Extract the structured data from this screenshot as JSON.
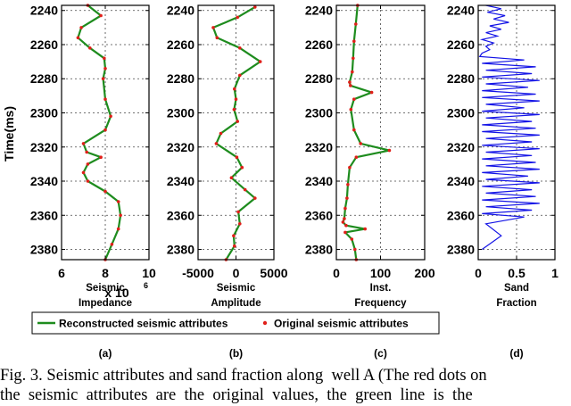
{
  "figure": {
    "y_axis_label": "Time(ms)",
    "legend": {
      "reconstructed_label": "Reconstructed seismic attributes",
      "original_label": "Original seismic attributes"
    },
    "caption_line1": "Fig. 3. Seismic attributes and sand fraction along  well A (The red dots on",
    "caption_line2": "the  seismic  attributes  are  the  original  values,  the  green  line  is  the"
  },
  "colors": {
    "reconstructed": "#1e8c1e",
    "original": "#e0201a",
    "sand": "#1414e6"
  },
  "chart_data": [
    {
      "type": "line",
      "panel": "(a)",
      "xlabel_line1": "Seismic",
      "xlabel_line2": "Impedance",
      "x_multiplier_label": "x 10",
      "x_multiplier_exponent": "6",
      "xlim": [
        6,
        10
      ],
      "xticks": [
        6,
        8,
        10
      ],
      "ylim": [
        2386,
        2237
      ],
      "yticks": [
        2240,
        2260,
        2280,
        2300,
        2320,
        2340,
        2360,
        2380
      ],
      "grid": "dashed",
      "series": [
        {
          "name": "Reconstructed seismic attributes",
          "x": [
            7.2,
            7.8,
            6.9,
            6.75,
            7.3,
            7.95,
            8.0,
            7.9,
            8.0,
            8.25,
            8.0,
            7.0,
            7.15,
            7.8,
            7.2,
            7.0,
            7.2,
            8.0,
            8.6,
            8.7,
            8.6,
            8.3,
            8.0
          ],
          "y": [
            2237,
            2243,
            2250,
            2256,
            2262,
            2268,
            2274,
            2280,
            2292,
            2302,
            2310,
            2318,
            2323,
            2326,
            2330,
            2335,
            2340,
            2346,
            2352,
            2360,
            2368,
            2377,
            2386
          ]
        },
        {
          "name": "Original seismic attributes",
          "x": [
            7.2,
            7.8,
            6.9,
            6.75,
            7.3,
            7.95,
            8.0,
            7.9,
            8.0,
            8.25,
            8.0,
            7.0,
            7.15,
            7.8,
            7.2,
            7.0,
            7.2,
            8.0,
            8.6,
            8.7,
            8.6,
            8.3,
            8.0
          ],
          "y": [
            2237,
            2243,
            2250,
            2256,
            2262,
            2268,
            2274,
            2280,
            2292,
            2302,
            2310,
            2318,
            2323,
            2326,
            2330,
            2335,
            2340,
            2346,
            2352,
            2360,
            2368,
            2377,
            2386
          ]
        }
      ]
    },
    {
      "type": "line",
      "panel": "(b)",
      "xlabel_line1": "Seismic",
      "xlabel_line2": "Amplitude",
      "xlim": [
        -5000,
        5000
      ],
      "xticks": [
        -5000,
        0,
        5000
      ],
      "ylim": [
        2386,
        2237
      ],
      "yticks": [
        2240,
        2260,
        2280,
        2300,
        2320,
        2340,
        2360,
        2380
      ],
      "grid": "dashed",
      "series": [
        {
          "name": "Reconstructed seismic attributes",
          "x": [
            2500,
            200,
            -3000,
            -2500,
            500,
            3200,
            500,
            -200,
            0,
            -250,
            200,
            -2000,
            -2600,
            100,
            800,
            -600,
            1200,
            2500,
            300,
            500,
            -300,
            -200,
            -1300
          ],
          "y": [
            2238,
            2244,
            2250,
            2256,
            2262,
            2270,
            2278,
            2286,
            2292,
            2298,
            2305,
            2312,
            2318,
            2326,
            2332,
            2338,
            2345,
            2350,
            2358,
            2365,
            2372,
            2378,
            2386
          ]
        },
        {
          "name": "Original seismic attributes",
          "x": [
            2500,
            200,
            -3000,
            -2500,
            500,
            3200,
            500,
            -200,
            0,
            -250,
            200,
            -2000,
            -2600,
            100,
            800,
            -600,
            1200,
            2500,
            300,
            500,
            -300,
            -200,
            -1300
          ],
          "y": [
            2238,
            2244,
            2250,
            2256,
            2262,
            2270,
            2278,
            2286,
            2292,
            2298,
            2305,
            2312,
            2318,
            2326,
            2332,
            2338,
            2345,
            2350,
            2358,
            2365,
            2372,
            2378,
            2386
          ]
        }
      ]
    },
    {
      "type": "line",
      "panel": "(c)",
      "xlabel_line1": "Inst.",
      "xlabel_line2": "Frequency",
      "xlim": [
        0,
        200
      ],
      "xticks": [
        0,
        100,
        200
      ],
      "ylim": [
        2386,
        2237
      ],
      "yticks": [
        2240,
        2260,
        2280,
        2300,
        2320,
        2340,
        2360,
        2380
      ],
      "grid": "dashed",
      "series": [
        {
          "name": "Reconstructed seismic attributes",
          "x": [
            48,
            44,
            40,
            38,
            36,
            30,
            32,
            80,
            40,
            33,
            40,
            55,
            120,
            45,
            30,
            26,
            24,
            20,
            18,
            15,
            22,
            65,
            20,
            35,
            42,
            45
          ],
          "y": [
            2237,
            2248,
            2258,
            2268,
            2276,
            2282,
            2284,
            2288,
            2292,
            2298,
            2310,
            2318,
            2322,
            2326,
            2332,
            2342,
            2350,
            2356,
            2362,
            2364,
            2366,
            2368,
            2370,
            2374,
            2380,
            2386
          ]
        },
        {
          "name": "Original seismic attributes",
          "x": [
            48,
            44,
            40,
            38,
            36,
            30,
            32,
            80,
            40,
            33,
            40,
            55,
            120,
            45,
            30,
            26,
            24,
            20,
            18,
            15,
            22,
            65,
            20,
            35,
            42,
            45
          ],
          "y": [
            2237,
            2248,
            2258,
            2268,
            2276,
            2282,
            2284,
            2288,
            2292,
            2298,
            2310,
            2318,
            2322,
            2326,
            2332,
            2342,
            2350,
            2356,
            2362,
            2364,
            2366,
            2368,
            2370,
            2374,
            2380,
            2386
          ]
        }
      ]
    },
    {
      "type": "line",
      "panel": "(d)",
      "xlabel_line1": "Sand",
      "xlabel_line2": "Fraction",
      "xlim": [
        0,
        1
      ],
      "xticks": [
        0,
        0.5,
        1
      ],
      "ylim": [
        2386,
        2237
      ],
      "yticks": [
        2240,
        2260,
        2280,
        2300,
        2320,
        2340,
        2360,
        2380
      ],
      "grid": "dashed",
      "series": [
        {
          "name": "Sand Fraction",
          "x": [
            0.1,
            0.3,
            0.12,
            0.35,
            0.2,
            0.4,
            0.15,
            0.3,
            0.1,
            0.25,
            0.05,
            0.2,
            0.1,
            0.15,
            0.05,
            0.02,
            0.6,
            0.05,
            0.75,
            0.1,
            0.7,
            0.05,
            0.8,
            0.1,
            0.65,
            0.05,
            0.75,
            0.05,
            0.8,
            0.1,
            0.6,
            0.05,
            0.8,
            0.1,
            0.7,
            0.05,
            0.75,
            0.05,
            0.8,
            0.1,
            0.7,
            0.05,
            0.8,
            0.1,
            0.7,
            0.05,
            0.75,
            0.1,
            0.8,
            0.05,
            0.65,
            0.1,
            0.8,
            0.05,
            0.7,
            0.1,
            0.75,
            0.05,
            0.8,
            0.1,
            0.7,
            0.05,
            0.6,
            0.1,
            0.3,
            0.05
          ],
          "y": [
            2237,
            2239,
            2241,
            2243,
            2245,
            2247,
            2249,
            2251,
            2253,
            2255,
            2257,
            2259,
            2261,
            2263,
            2265,
            2267,
            2269,
            2271,
            2273,
            2275,
            2277,
            2279,
            2281,
            2283,
            2285,
            2287,
            2289,
            2291,
            2293,
            2295,
            2297,
            2299,
            2301,
            2303,
            2305,
            2307,
            2309,
            2311,
            2313,
            2315,
            2317,
            2319,
            2321,
            2323,
            2325,
            2327,
            2329,
            2331,
            2333,
            2335,
            2337,
            2339,
            2341,
            2343,
            2345,
            2347,
            2349,
            2351,
            2353,
            2355,
            2357,
            2359,
            2361,
            2365,
            2372,
            2380
          ]
        }
      ]
    }
  ]
}
